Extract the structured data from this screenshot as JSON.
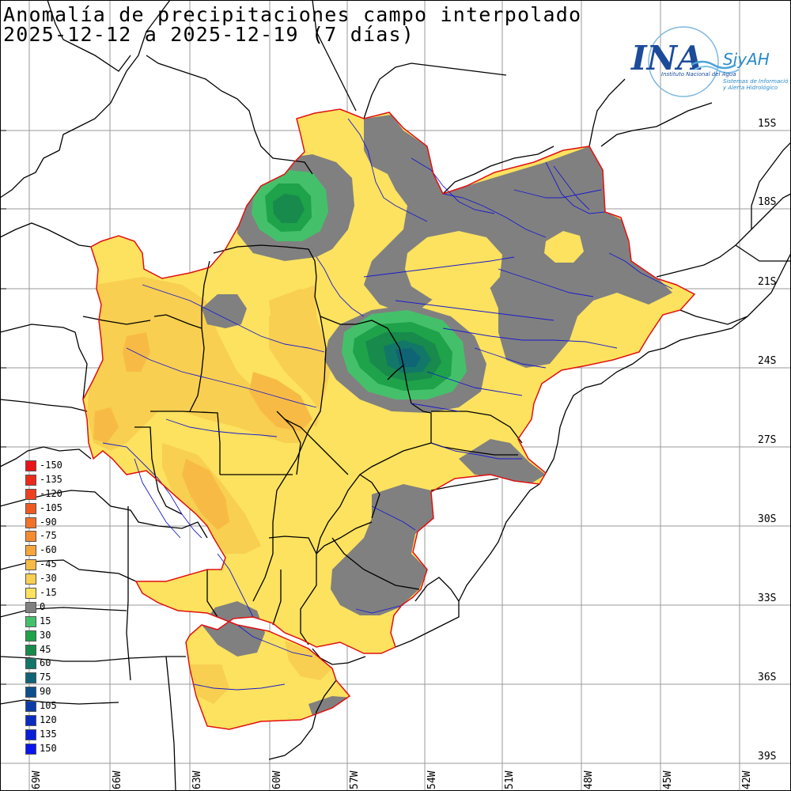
{
  "title": {
    "line1": "Anomalía de precipitaciones campo interpolado",
    "line2": "2025-12-12 a 2025-12-19 (7 días)"
  },
  "logo": {
    "brand": "INA",
    "system": "SiyAH",
    "line1": "Instituto Nacional del Agua",
    "line2": "Sistemas de Información",
    "line3": "y Alerta Hidrológico"
  },
  "legend": [
    {
      "label": "-150",
      "color": "#e8141a"
    },
    {
      "label": "-135",
      "color": "#eb2a1c"
    },
    {
      "label": "-120",
      "color": "#ee401e"
    },
    {
      "label": "-105",
      "color": "#f05a22"
    },
    {
      "label": "-90",
      "color": "#f27328"
    },
    {
      "label": "-75",
      "color": "#f58c30"
    },
    {
      "label": "-60",
      "color": "#f7a63b"
    },
    {
      "label": "-45",
      "color": "#f7bb45"
    },
    {
      "label": "-30",
      "color": "#f8cf50"
    },
    {
      "label": "-15",
      "color": "#fce25e"
    },
    {
      "label": "0",
      "color": "#808080"
    },
    {
      "label": "15",
      "color": "#45c06a"
    },
    {
      "label": "30",
      "color": "#1ea24a"
    },
    {
      "label": "45",
      "color": "#178a4c"
    },
    {
      "label": "60",
      "color": "#127668"
    },
    {
      "label": "75",
      "color": "#0f6475"
    },
    {
      "label": "90",
      "color": "#0d4f8c"
    },
    {
      "label": "105",
      "color": "#0b3ca6"
    },
    {
      "label": "120",
      "color": "#0a2cc0"
    },
    {
      "label": "135",
      "color": "#0a1ed8"
    },
    {
      "label": "150",
      "color": "#0a14ee"
    }
  ],
  "lat_labels": [
    "15S",
    "18S",
    "21S",
    "24S",
    "27S",
    "30S",
    "33S",
    "36S",
    "39S"
  ],
  "lon_labels": [
    "69W",
    "66W",
    "63W",
    "60W",
    "57W",
    "54W",
    "51W",
    "48W",
    "45W",
    "42W"
  ],
  "colors": {
    "grid": "#9a9a9a",
    "boundary": "#000000",
    "rivers": "#1a1acc",
    "basin_outline": "#e01010"
  }
}
